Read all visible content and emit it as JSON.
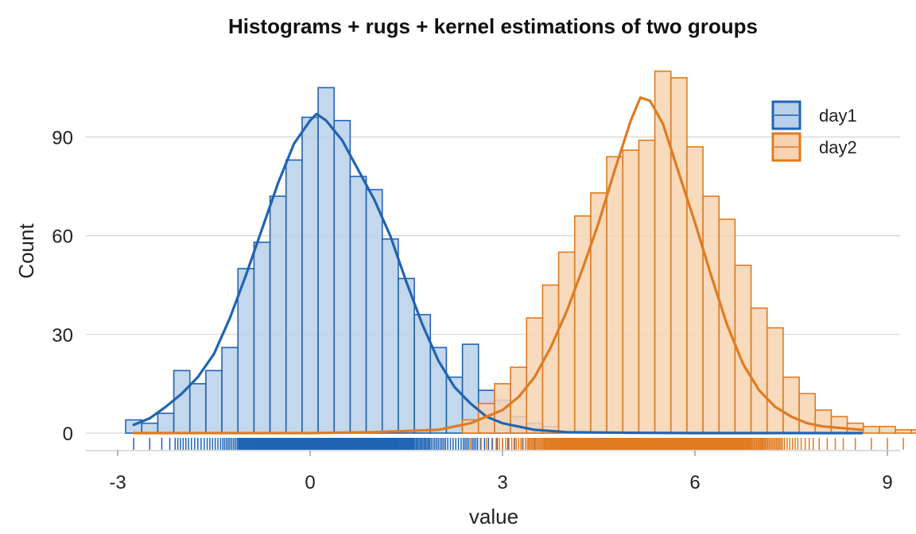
{
  "chart_data": {
    "type": "histogram",
    "title": "Histograms + rugs + kernel estimations of two groups",
    "xlabel": "value",
    "ylabel": "Count",
    "xlim": [
      -3,
      9
    ],
    "ylim": [
      0,
      110
    ],
    "x_ticks": [
      "-3",
      "0",
      "3",
      "6",
      "9"
    ],
    "y_ticks": [
      "0",
      "30",
      "60",
      "90"
    ],
    "bin_width": 0.25,
    "grid": "horizontal",
    "legend_position": "top-right",
    "series": [
      {
        "name": "day1",
        "color": "#1f64b3",
        "fill": "#b9d0ea",
        "bin_start": -2.875,
        "counts": [
          4,
          3,
          6,
          19,
          15,
          19,
          26,
          50,
          58,
          72,
          83,
          96,
          105,
          95,
          78,
          74,
          59,
          47,
          36,
          26,
          17,
          27,
          13,
          10,
          5,
          3,
          2
        ],
        "kde": [
          {
            "x": -2.75,
            "y": 2.5
          },
          {
            "x": -2.5,
            "y": 4.5
          },
          {
            "x": -2.25,
            "y": 8
          },
          {
            "x": -2.0,
            "y": 12
          },
          {
            "x": -1.75,
            "y": 17
          },
          {
            "x": -1.5,
            "y": 24
          },
          {
            "x": -1.25,
            "y": 35
          },
          {
            "x": -1.0,
            "y": 48
          },
          {
            "x": -0.75,
            "y": 62
          },
          {
            "x": -0.5,
            "y": 76
          },
          {
            "x": -0.25,
            "y": 88
          },
          {
            "x": 0.0,
            "y": 95
          },
          {
            "x": 0.1,
            "y": 97
          },
          {
            "x": 0.25,
            "y": 95
          },
          {
            "x": 0.5,
            "y": 89
          },
          {
            "x": 0.75,
            "y": 80
          },
          {
            "x": 1.0,
            "y": 71
          },
          {
            "x": 1.25,
            "y": 60
          },
          {
            "x": 1.5,
            "y": 46
          },
          {
            "x": 1.75,
            "y": 33
          },
          {
            "x": 2.0,
            "y": 22
          },
          {
            "x": 2.25,
            "y": 14
          },
          {
            "x": 2.5,
            "y": 9
          },
          {
            "x": 2.75,
            "y": 5
          },
          {
            "x": 3.0,
            "y": 3
          },
          {
            "x": 3.5,
            "y": 1
          },
          {
            "x": 4.0,
            "y": 0.3
          },
          {
            "x": 5.0,
            "y": 0.1
          },
          {
            "x": 6.0,
            "y": 0
          },
          {
            "x": 8.6,
            "y": 0
          }
        ]
      },
      {
        "name": "day2",
        "color": "#e07b1f",
        "fill": "#f7d3b1",
        "bin_start": 2.375,
        "counts": [
          4,
          9,
          15,
          20,
          35,
          45,
          55,
          66,
          73,
          84,
          86,
          89,
          110,
          108,
          87,
          72,
          65,
          51,
          38,
          32,
          17,
          12,
          7,
          5,
          3,
          2,
          2,
          1,
          1,
          1,
          1
        ],
        "kde": [
          {
            "x": -2.75,
            "y": 0
          },
          {
            "x": 0.0,
            "y": 0
          },
          {
            "x": 1.0,
            "y": 0.3
          },
          {
            "x": 2.0,
            "y": 1
          },
          {
            "x": 2.5,
            "y": 3
          },
          {
            "x": 3.0,
            "y": 7
          },
          {
            "x": 3.25,
            "y": 11
          },
          {
            "x": 3.5,
            "y": 17
          },
          {
            "x": 3.75,
            "y": 26
          },
          {
            "x": 4.0,
            "y": 37
          },
          {
            "x": 4.25,
            "y": 50
          },
          {
            "x": 4.5,
            "y": 64
          },
          {
            "x": 4.75,
            "y": 80
          },
          {
            "x": 5.0,
            "y": 95
          },
          {
            "x": 5.15,
            "y": 102
          },
          {
            "x": 5.3,
            "y": 101
          },
          {
            "x": 5.5,
            "y": 94
          },
          {
            "x": 5.75,
            "y": 79
          },
          {
            "x": 6.0,
            "y": 64
          },
          {
            "x": 6.25,
            "y": 48
          },
          {
            "x": 6.5,
            "y": 33
          },
          {
            "x": 6.75,
            "y": 21
          },
          {
            "x": 7.0,
            "y": 13
          },
          {
            "x": 7.25,
            "y": 8
          },
          {
            "x": 7.5,
            "y": 5
          },
          {
            "x": 7.75,
            "y": 3
          },
          {
            "x": 8.0,
            "y": 2
          },
          {
            "x": 8.6,
            "y": 1
          }
        ]
      }
    ]
  }
}
